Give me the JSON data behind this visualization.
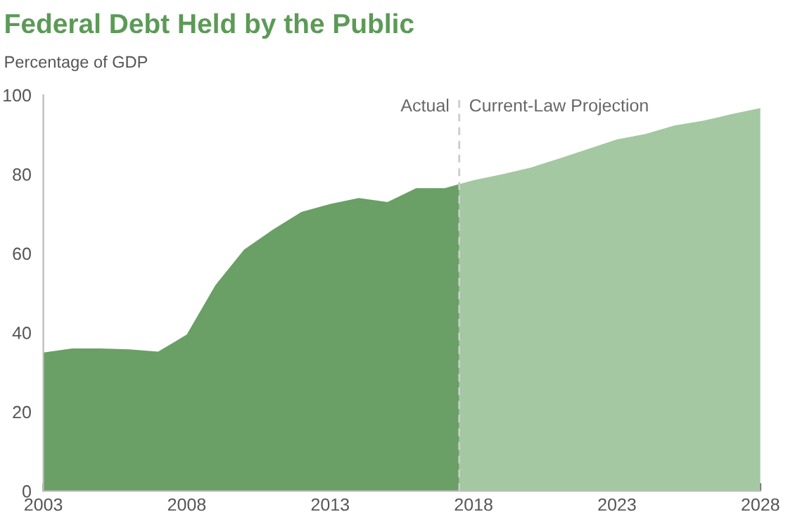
{
  "chart_data": {
    "type": "area",
    "title": "Federal Debt Held by the Public",
    "ylabel": "Percentage of GDP",
    "series": [
      {
        "name": null,
        "color": "#6a9f66",
        "x": [
          2003,
          2004,
          2005,
          2006,
          2007,
          2008,
          2009,
          2010,
          2011,
          2012,
          2013,
          2014,
          2015,
          2016,
          2017,
          2017.5
        ],
        "values": [
          35,
          36,
          36,
          35.8,
          35.2,
          39.5,
          52,
          61,
          66,
          70.5,
          72.5,
          74,
          73,
          76.5,
          76.5,
          77.5
        ]
      },
      {
        "name": null,
        "color": "#a4c8a2",
        "x": [
          2017.5,
          2018,
          2019,
          2020,
          2021,
          2022,
          2023,
          2024,
          2025,
          2026,
          2027,
          2028
        ],
        "values": [
          77.5,
          78.5,
          80,
          81.7,
          84,
          86.4,
          88.8,
          90.2,
          92.3,
          93.5,
          95.2,
          96.7
        ]
      }
    ],
    "xlim": [
      2003,
      2028
    ],
    "xticks": [
      2003,
      2008,
      2013,
      2018,
      2023,
      2028
    ],
    "ylim": [
      0,
      100
    ],
    "yticks": [
      0,
      20,
      40,
      60,
      80,
      100
    ],
    "ref_lines": [
      {
        "axis": "x",
        "value": 2017.5,
        "label": null,
        "color": "#cccccc",
        "line_style": "dashed"
      }
    ],
    "annotations": [
      {
        "text": "Actual",
        "x": 2017.5,
        "y": 97
      },
      {
        "text": "Current-Law Projection",
        "x": 2017.5,
        "y": 97
      }
    ],
    "grid": false,
    "legend": false
  }
}
